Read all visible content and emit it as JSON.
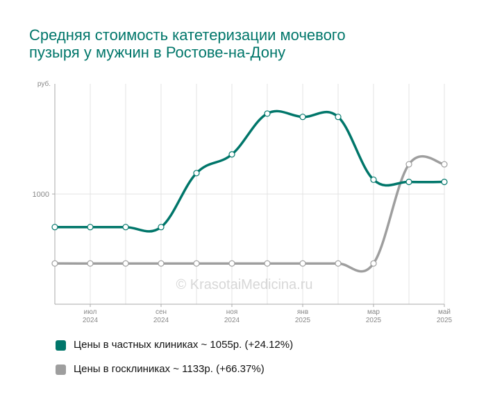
{
  "title_lines": [
    "Средняя стоимость катетеризации мочевого",
    "пузыря у мужчин в Ростове-на-Дону"
  ],
  "watermark": "© KrasotaiMedicina.ru",
  "chart_data": {
    "type": "line",
    "y_unit": "руб.",
    "y_ticks": [
      {
        "value": 1000,
        "label": "1000"
      }
    ],
    "ylim": [
      0,
      2000
    ],
    "grid": true,
    "x_points": [
      "2024-06",
      "2024-07",
      "2024-08",
      "2024-09",
      "2024-10",
      "2024-11",
      "2024-12",
      "2025-01",
      "2025-02",
      "2025-03",
      "2025-04",
      "2025-05"
    ],
    "x_ticks": [
      {
        "index": 1,
        "month": "июл",
        "year": "2024"
      },
      {
        "index": 3,
        "month": "сен",
        "year": "2024"
      },
      {
        "index": 5,
        "month": "ноя",
        "year": "2024"
      },
      {
        "index": 7,
        "month": "янв",
        "year": "2025"
      },
      {
        "index": 9,
        "month": "мар",
        "year": "2025"
      },
      {
        "index": 11,
        "month": "май",
        "year": "2025"
      }
    ],
    "series": [
      {
        "name": "Цены в частных клиниках",
        "color": "#00766a",
        "values": [
          700,
          700,
          700,
          700,
          1190,
          1360,
          1730,
          1700,
          1700,
          1130,
          1110,
          1110
        ]
      },
      {
        "name": "Цены в госклиниках",
        "color": "#9e9e9e",
        "values": [
          370,
          370,
          370,
          370,
          370,
          370,
          370,
          370,
          370,
          370,
          1270,
          1270
        ]
      }
    ],
    "legend_position": "bottom"
  },
  "legend": [
    {
      "text": "Цены в частных клиниках ~ 1055р. (+24.12%)",
      "color": "#00766a"
    },
    {
      "text": "Цены в госклиниках ~ 1133р. (+66.37%)",
      "color": "#9e9e9e"
    }
  ]
}
